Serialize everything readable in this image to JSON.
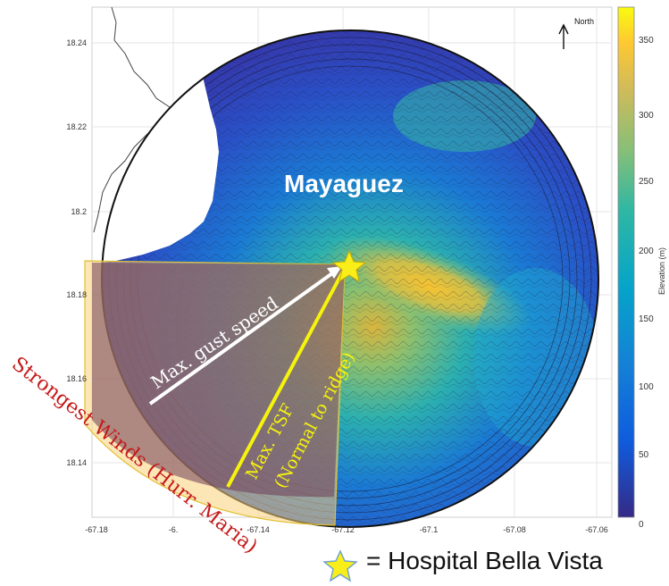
{
  "map": {
    "city_label": "Mayaguez",
    "north_label": "North",
    "colorbar_label": "Elevation (m)",
    "x_ticks": [
      "-67.18",
      "-6.",
      "-67.14",
      "-67.12",
      "-67.1",
      "-67.08",
      "-67.06"
    ],
    "y_ticks": [
      "18.24",
      "18.22",
      "18.2",
      "18.18",
      "18.16",
      "18.14"
    ],
    "colorbar_ticks": [
      "350",
      "300",
      "250",
      "200",
      "150",
      "100",
      "50",
      "0"
    ],
    "colorbar_range": [
      0,
      375
    ],
    "colormap": [
      "#352a87",
      "#0f5cdd",
      "#1481d6",
      "#06a4ca",
      "#2eb7a4",
      "#87bf77",
      "#d1bb59",
      "#fec832",
      "#f9fb0e"
    ]
  },
  "annotations": {
    "gust_label": "Max. gust speed",
    "tsf_label_line1": "Max. TSF",
    "tsf_label_line2": "(Normal to ridge)",
    "winds_label": "Strongest Winds (Hurr. Maria)"
  },
  "legend": {
    "label": "= Hospital Bella Vista",
    "star_color": "#f9ee1a"
  }
}
